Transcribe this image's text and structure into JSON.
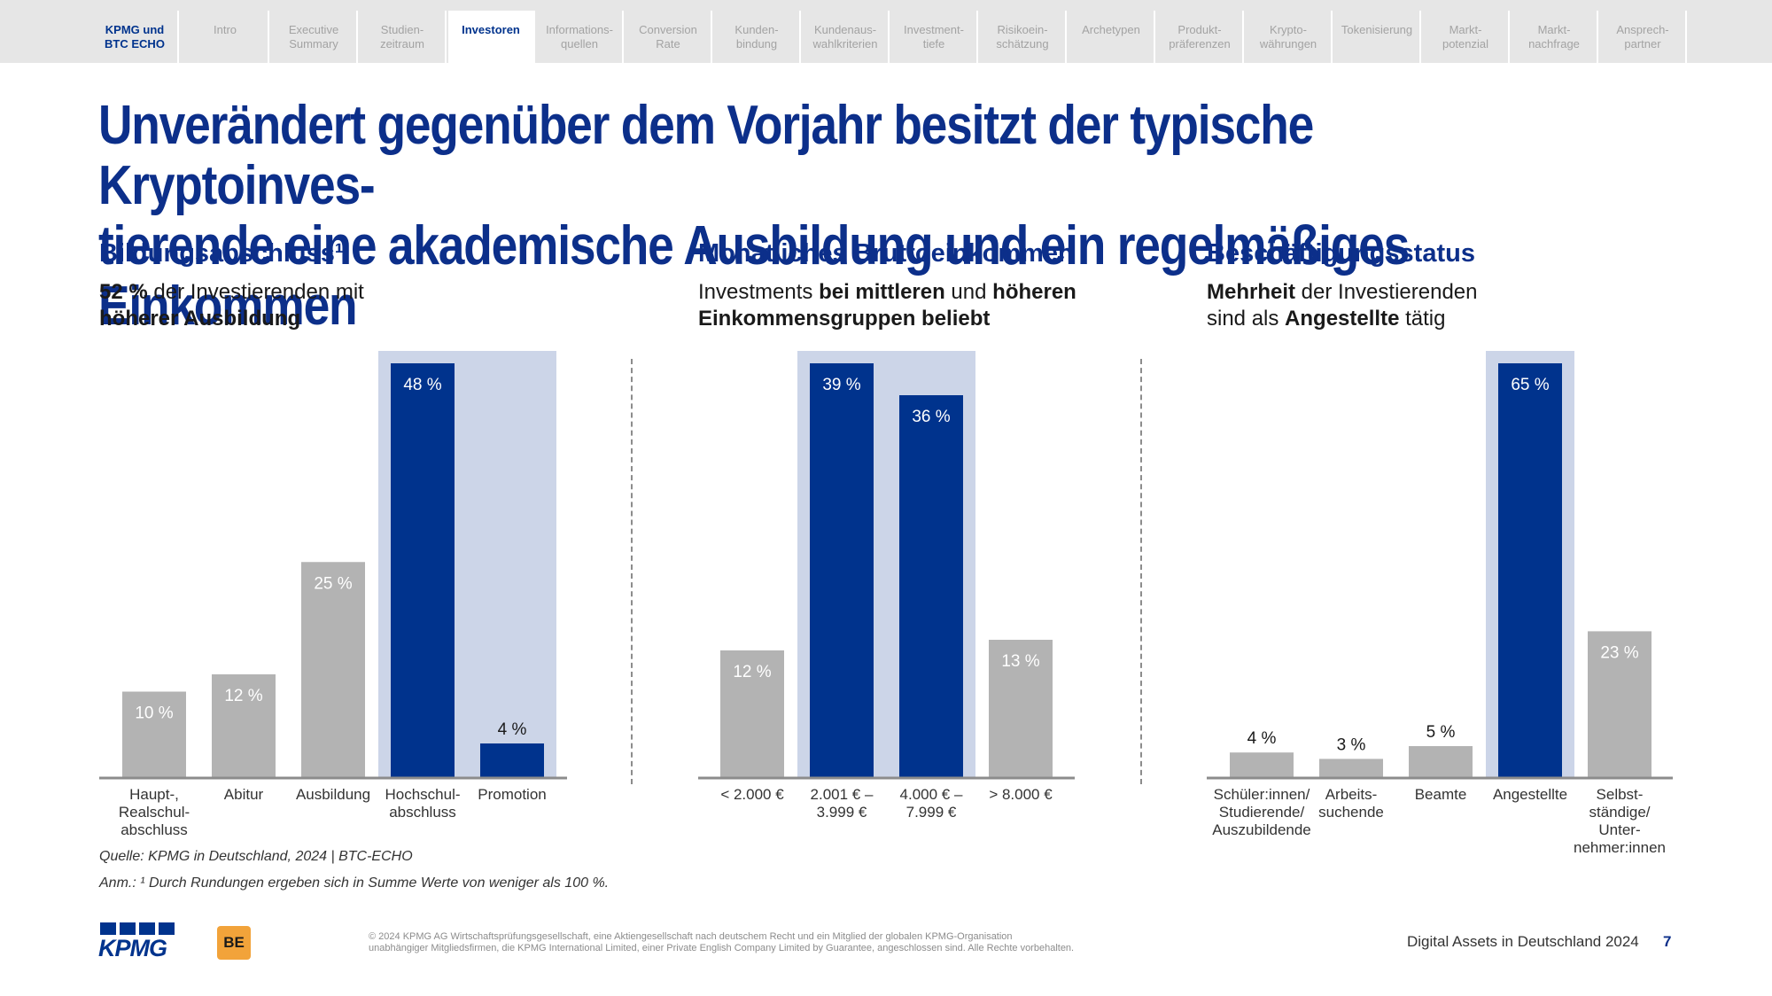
{
  "nav": {
    "home": "KPMG und\nBTC ECHO",
    "items": [
      {
        "label": "Intro",
        "active": false
      },
      {
        "label": "Executive\nSummary",
        "active": false
      },
      {
        "label": "Studien-\nzeitraum",
        "active": false
      },
      {
        "label": "Investoren",
        "active": true
      },
      {
        "label": "Informations-\nquellen",
        "active": false
      },
      {
        "label": "Conversion\nRate",
        "active": false
      },
      {
        "label": "Kunden-\nbindung",
        "active": false
      },
      {
        "label": "Kundenaus-\nwahlkriterien",
        "active": false
      },
      {
        "label": "Investment-\ntiefe",
        "active": false
      },
      {
        "label": "Risikoein-\nschätzung",
        "active": false
      },
      {
        "label": "Archetypen",
        "active": false
      },
      {
        "label": "Produkt-\npräferenzen",
        "active": false
      },
      {
        "label": "Krypto-\nwährungen",
        "active": false
      },
      {
        "label": "Tokenisierung",
        "active": false
      },
      {
        "label": "Markt-\npotenzial",
        "active": false
      },
      {
        "label": "Markt-\nnachfrage",
        "active": false
      },
      {
        "label": "Ansprech-\npartner",
        "active": false
      }
    ]
  },
  "headline": "Unverändert gegenüber dem Vorjahr besitzt der typische Kryptoinves-\ntierende eine akademische Ausbildung und ein regelmäßiges Einkommen",
  "panels": [
    {
      "title": "Bildungsabschluss¹",
      "sub_bold1": "52 %",
      "sub_text1": " der Investierenden mit",
      "sub_bold2": "höherer Ausbildung",
      "sub_text2": ""
    },
    {
      "title": "Monatliches Bruttoeinkommen",
      "sub_text1": "Investments ",
      "sub_bold1": "bei mittleren",
      "sub_text2": " und ",
      "sub_bold2": "höheren",
      "sub_bold3": "Einkommensgruppen beliebt"
    },
    {
      "title": "Beschäftigungsstatus",
      "sub_bold1": "Mehrheit",
      "sub_text1": " der Investierenden",
      "sub_text2": "sind als ",
      "sub_bold2": "Angestellte",
      "sub_text3": " tätig"
    }
  ],
  "chart_data": [
    {
      "type": "bar",
      "title": "Bildungsabschluss¹",
      "categories": [
        "Haupt-,\nRealschul-\nabschluss",
        "Abitur",
        "Ausbildung",
        "Hochschul-\nabschluss",
        "Promotion"
      ],
      "values": [
        10,
        12,
        25,
        48,
        4
      ],
      "labels": [
        "10 %",
        "12 %",
        "25 %",
        "48 %",
        "4 %"
      ],
      "highlight": [
        false,
        false,
        false,
        true,
        true
      ],
      "unit": "%",
      "ylim": [
        0,
        48
      ]
    },
    {
      "type": "bar",
      "title": "Monatliches Bruttoeinkommen",
      "categories": [
        "< 2.000 €",
        "2.001 € –\n3.999 €",
        "4.000 € –\n7.999 €",
        "> 8.000 €"
      ],
      "values": [
        12,
        39,
        36,
        13
      ],
      "labels": [
        "12 %",
        "39 %",
        "36 %",
        "13 %"
      ],
      "highlight": [
        false,
        true,
        true,
        false
      ],
      "unit": "%",
      "ylim": [
        0,
        39
      ]
    },
    {
      "type": "bar",
      "title": "Beschäftigungsstatus",
      "categories": [
        "Schüler:innen/\nStudierende/\nAuszubildende",
        "Arbeits-\nsuchende",
        "Beamte",
        "Angestellte",
        "Selbst-\nständige/\nUnter-\nnehmer:innen"
      ],
      "values": [
        4,
        3,
        5,
        65,
        23
      ],
      "labels": [
        "4 %",
        "3 %",
        "5 %",
        "65 %",
        "23 %"
      ],
      "highlight": [
        false,
        false,
        false,
        true,
        false
      ],
      "unit": "%",
      "ylim": [
        0,
        65
      ]
    }
  ],
  "source": "Quelle: KPMG in Deutschland, 2024 | BTC-ECHO",
  "note": "Anm.: ¹ Durch Rundungen ergeben sich in Summe Werte von weniger als 100 %.",
  "footer": {
    "kpmg_logo": "KPMG",
    "bte_logo": "BE",
    "copyright_line1": "© 2024 KPMG AG Wirtschaftsprüfungsgesellschaft, eine Aktiengesellschaft nach deutschem Recht und ein Mitglied der globalen KPMG-Organisation",
    "copyright_line2": "unabhängiger Mitgliedsfirmen, die KPMG International Limited, einer Private English Company Limited by Guarantee, angeschlossen sind. Alle Rechte vorbehalten.",
    "title": "Digital Assets in Deutschland 2024",
    "page": "7"
  },
  "colors": {
    "brand": "#0c2f8a",
    "bar_highlight": "#00338d",
    "bar_default": "#b3b3b3",
    "highlight_band": "#ccd5e8",
    "axis": "#8c8c8c"
  }
}
